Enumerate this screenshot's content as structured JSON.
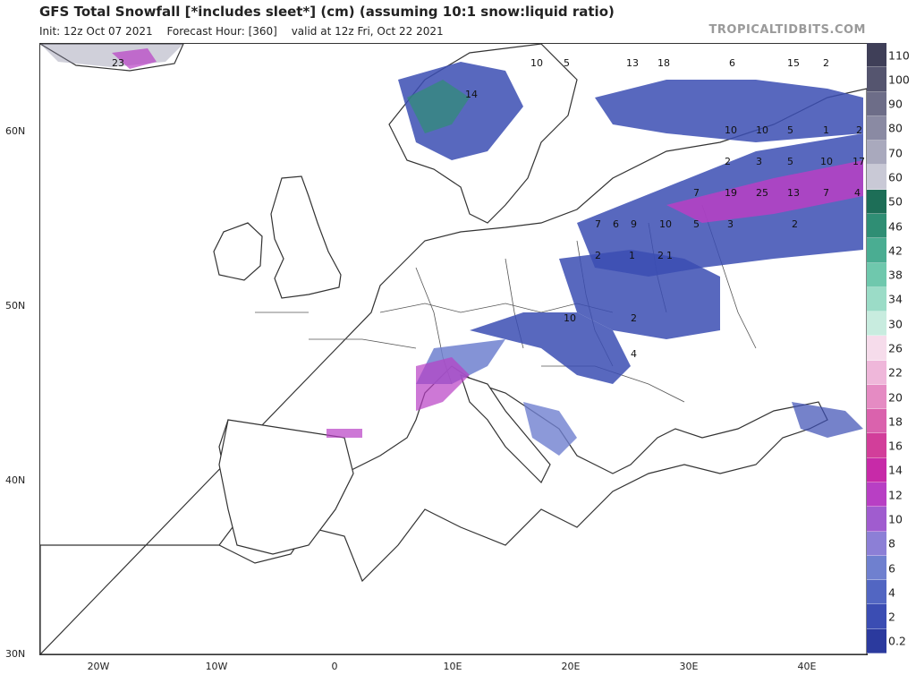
{
  "header": {
    "title": "GFS Total Snowfall [*includes sleet*] (cm) (assuming 10:1 snow:liquid ratio)",
    "init": "Init: 12z Oct 07 2021",
    "forecast_hour": "Forecast Hour: [360]",
    "valid": "valid at 12z Fri, Oct 22 2021",
    "brand": "TROPICALTIDBITS.COM"
  },
  "axes": {
    "lat_labels": [
      "60N",
      "50N",
      "40N",
      "30N"
    ],
    "lon_labels": [
      "20W",
      "10W",
      "0",
      "10E",
      "20E",
      "30E",
      "40E"
    ]
  },
  "colorbar": {
    "levels": [
      "0.2",
      "2",
      "4",
      "6",
      "8",
      "10",
      "12",
      "14",
      "16",
      "18",
      "20",
      "22",
      "26",
      "30",
      "34",
      "38",
      "42",
      "46",
      "50",
      "60",
      "70",
      "80",
      "90",
      "100",
      "110"
    ],
    "colors": [
      "#2b3a9e",
      "#3b4db3",
      "#5266c2",
      "#6f80cf",
      "#8c7fd6",
      "#a05ccf",
      "#b83fc4",
      "#c72aa8",
      "#d23e9a",
      "#da62ad",
      "#e58bc3",
      "#efb7da",
      "#f6dceb",
      "#c8ecdf",
      "#9bdcc7",
      "#6fc8ad",
      "#4aad92",
      "#2f8e74",
      "#1d6e57",
      "#c9c9d6",
      "#a9a9bd",
      "#8a8aa3",
      "#6d6d88",
      "#55556f",
      "#3f3f58"
    ]
  },
  "map_labels": {
    "snow_totals": [
      "23",
      "10",
      "5",
      "13",
      "18",
      "6",
      "15",
      "2",
      "14",
      "10",
      "10",
      "5",
      "1",
      "2",
      "2",
      "3",
      "5",
      "10",
      "17",
      "7",
      "19",
      "25",
      "13",
      "7",
      "4",
      "7",
      "6",
      "9",
      "10",
      "5",
      "3",
      "2",
      "2",
      "1",
      "2",
      "1",
      "10",
      "2",
      "4"
    ]
  }
}
